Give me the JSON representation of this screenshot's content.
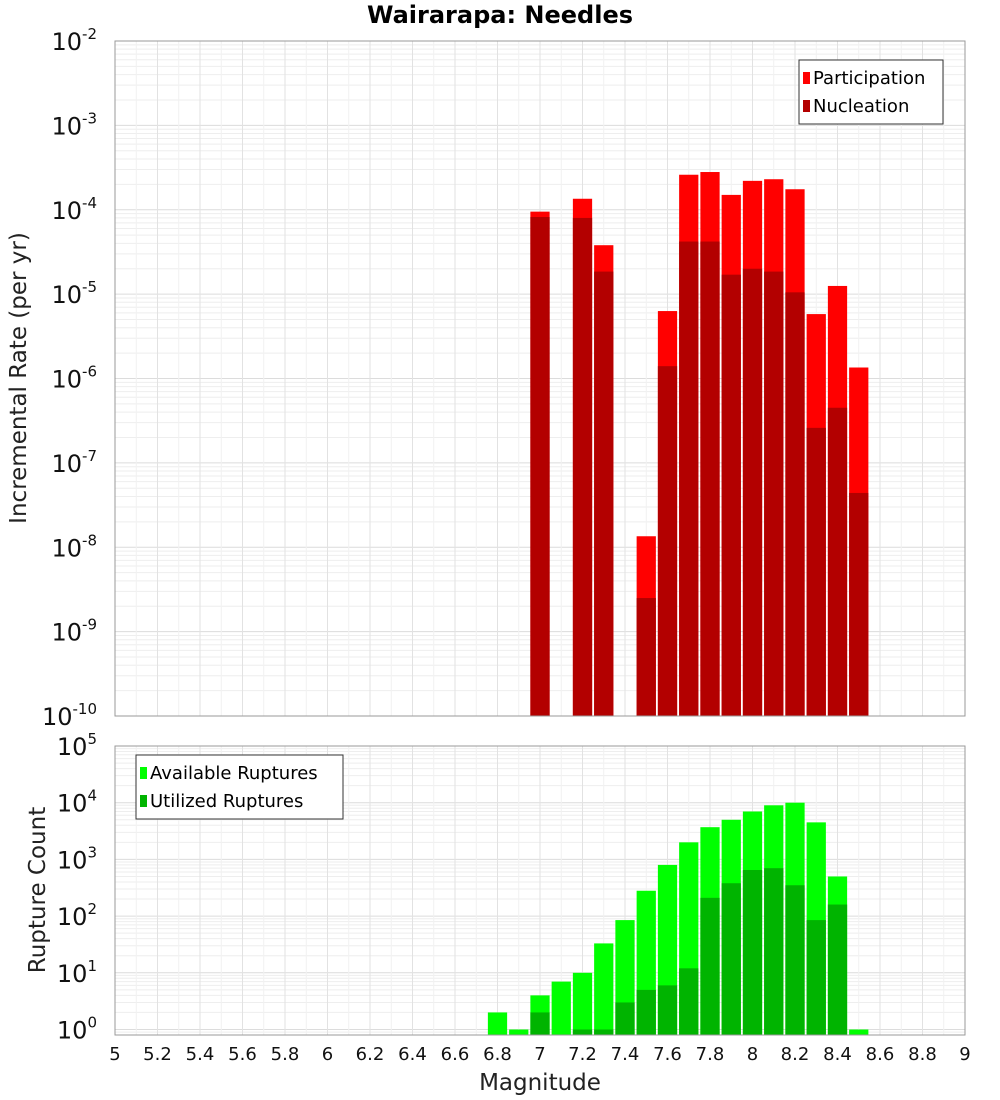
{
  "title": "Wairarapa: Needles",
  "chart_data": [
    {
      "type": "bar",
      "panel": "top",
      "scale": "log",
      "ylabel": "Incremental Rate (per yr)",
      "ylim": [
        1e-10,
        0.01
      ],
      "y_ticks": [
        {
          "base": "10",
          "exp": "-10"
        },
        {
          "base": "10",
          "exp": "-9"
        },
        {
          "base": "10",
          "exp": "-8"
        },
        {
          "base": "10",
          "exp": "-7"
        },
        {
          "base": "10",
          "exp": "-6"
        },
        {
          "base": "10",
          "exp": "-5"
        },
        {
          "base": "10",
          "exp": "-4"
        },
        {
          "base": "10",
          "exp": "-3"
        },
        {
          "base": "10",
          "exp": "-2"
        }
      ],
      "x": [
        7.0,
        7.2,
        7.3,
        7.5,
        7.6,
        7.7,
        7.8,
        7.9,
        8.0,
        8.1,
        8.2,
        8.3,
        8.4,
        8.5
      ],
      "series": [
        {
          "name": "Participation",
          "color": "#ff0000",
          "values": [
            9.5e-05,
            0.000135,
            3.8e-05,
            1.35e-08,
            6.3e-06,
            0.00026,
            0.00028,
            0.00015,
            0.00022,
            0.00023,
            0.000175,
            5.8e-06,
            1.25e-05,
            1.35e-06
          ]
        },
        {
          "name": "Nucleation",
          "color": "#b30000",
          "values": [
            8.2e-05,
            8e-05,
            1.85e-05,
            2.5e-09,
            1.4e-06,
            4.2e-05,
            4.2e-05,
            1.7e-05,
            2e-05,
            1.85e-05,
            1.05e-05,
            2.6e-07,
            4.5e-07,
            4.4e-08
          ]
        }
      ],
      "legend_position": "top-right"
    },
    {
      "type": "bar",
      "panel": "bottom",
      "scale": "log",
      "ylabel": "Rupture Count",
      "xlabel": "Magnitude",
      "ylim": [
        0.8,
        100000
      ],
      "y_ticks": [
        {
          "base": "10",
          "exp": "0"
        },
        {
          "base": "10",
          "exp": "1"
        },
        {
          "base": "10",
          "exp": "2"
        },
        {
          "base": "10",
          "exp": "3"
        },
        {
          "base": "10",
          "exp": "4"
        },
        {
          "base": "10",
          "exp": "5"
        }
      ],
      "x_ticks": [
        "5",
        "5.2",
        "5.4",
        "5.6",
        "5.8",
        "6",
        "6.2",
        "6.4",
        "6.6",
        "6.8",
        "7",
        "7.2",
        "7.4",
        "7.6",
        "7.8",
        "8",
        "8.2",
        "8.4",
        "8.6",
        "8.8",
        "9"
      ],
      "xlim": [
        5,
        9
      ],
      "x": [
        6.8,
        6.9,
        7.0,
        7.1,
        7.2,
        7.3,
        7.4,
        7.5,
        7.6,
        7.7,
        7.8,
        7.9,
        8.0,
        8.1,
        8.2,
        8.3,
        8.4,
        8.5
      ],
      "series": [
        {
          "name": "Available Ruptures",
          "color": "#00ff00",
          "values": [
            2,
            1,
            4,
            7,
            10,
            33,
            85,
            280,
            800,
            2000,
            3700,
            5000,
            7000,
            9000,
            10000,
            4500,
            500,
            1
          ]
        },
        {
          "name": "Utilized Ruptures",
          "color": "#00b400",
          "values": [
            0,
            0,
            2,
            0,
            1,
            1,
            3,
            5,
            6,
            12,
            210,
            380,
            650,
            700,
            350,
            85,
            160,
            0
          ]
        }
      ],
      "legend_position": "top-left"
    }
  ]
}
